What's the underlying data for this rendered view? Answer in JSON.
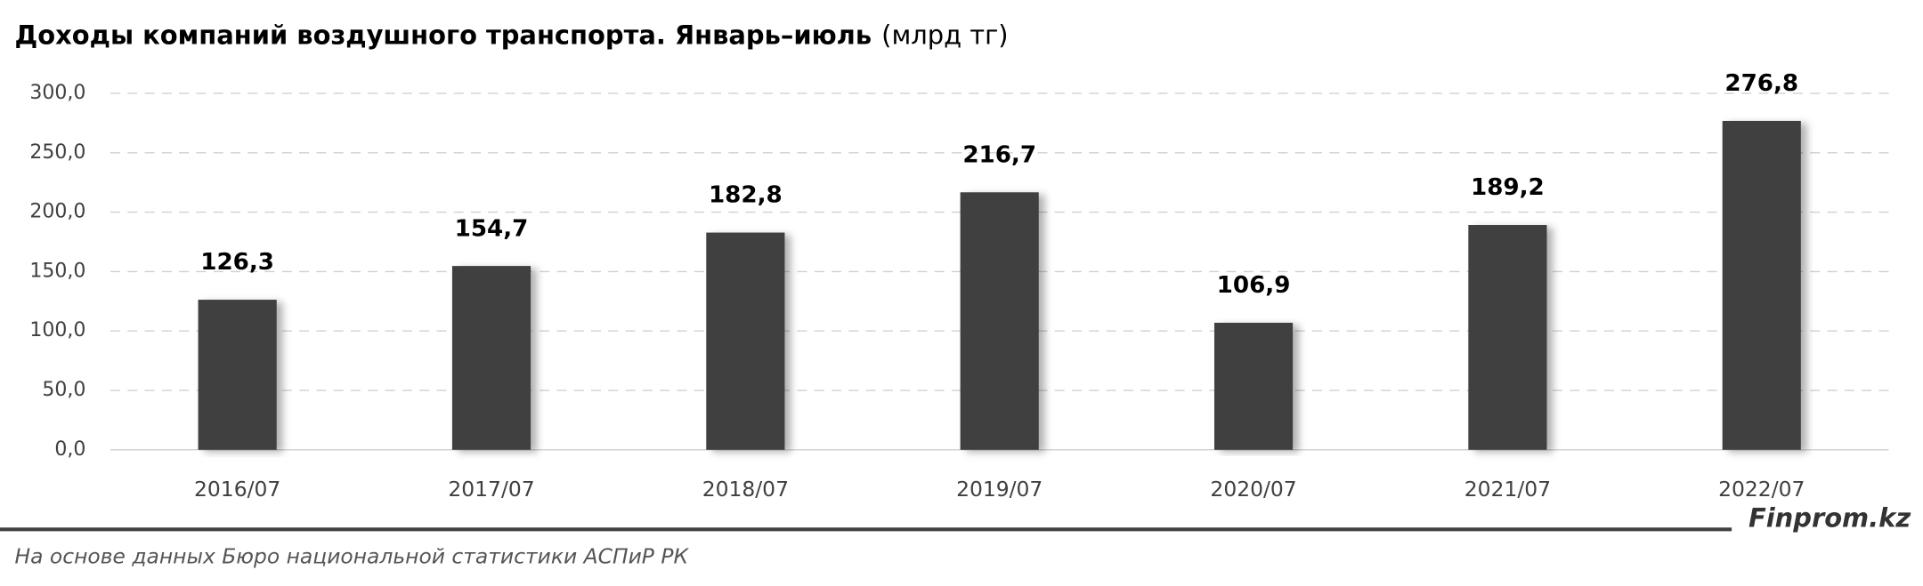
{
  "chart_data": {
    "type": "bar",
    "title": "Доходы компаний воздушного транспорта. Январь–июль",
    "unit": "(млрд тг)",
    "categories": [
      "2016/07",
      "2017/07",
      "2018/07",
      "2019/07",
      "2020/07",
      "2021/07",
      "2022/07"
    ],
    "values": [
      126.3,
      154.7,
      182.8,
      216.7,
      106.9,
      189.2,
      276.8
    ],
    "value_labels": [
      "126,3",
      "154,7",
      "182,8",
      "216,7",
      "106,9",
      "189,2",
      "276,8"
    ],
    "color": "#404040",
    "ylim": [
      0,
      300
    ],
    "yticks": [
      {
        "value": 0,
        "label": "0,0"
      },
      {
        "value": 50,
        "label": "50,0"
      },
      {
        "value": 100,
        "label": "100,0"
      },
      {
        "value": 150,
        "label": "150,0"
      },
      {
        "value": 200,
        "label": "200,0"
      },
      {
        "value": 250,
        "label": "250,0"
      },
      {
        "value": 300,
        "label": "300,0"
      }
    ],
    "grid": true,
    "brand": "Finprom.kz",
    "source": "На основе данных Бюро национальной статистики АСПиР РК"
  }
}
